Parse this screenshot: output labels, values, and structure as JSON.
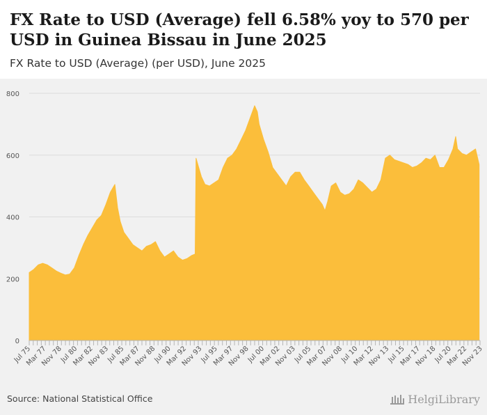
{
  "title": "FX Rate to USD (Average) fell 6.58% yoy to 570 per USD in Guinea Bissau in June 2025",
  "subtitle": "FX Rate to USD (Average) (per USD), June 2025",
  "source": "Source: National Statistical Office",
  "brand": "HelgiLibrary",
  "colors": {
    "fill": "#FBBE3B",
    "grid": "#dcdcdc",
    "axis": "#b5b5b5",
    "panel": "#f1f1f1"
  },
  "chart_data": {
    "type": "area",
    "title": "FX Rate to USD (Average) (per USD), June 2025",
    "xlabel": "",
    "ylabel": "",
    "ylim": [
      0,
      800
    ],
    "yticks": [
      0,
      200,
      400,
      600,
      800
    ],
    "xlim": [
      1975.5,
      2025.5
    ],
    "xtick_labels": [
      "Jul 75",
      "Mar 77",
      "Nov 78",
      "Jul 80",
      "Mar 82",
      "Nov 83",
      "Jul 85",
      "Mar 87",
      "Nov 88",
      "Jul 90",
      "Mar 92",
      "Nov 93",
      "Jul 95",
      "Mar 97",
      "Nov 98",
      "Jul 00",
      "Mar 02",
      "Nov 03",
      "Jul 05",
      "Mar 07",
      "Nov 08",
      "Jul 10",
      "Mar 12",
      "Nov 13",
      "Jul 15",
      "Mar 17",
      "Nov 18",
      "Jul 20",
      "Mar 22",
      "Nov 23"
    ],
    "grid": true,
    "series": [
      {
        "name": "FX Rate to USD (Average)",
        "x": [
          1975.5,
          1976.0,
          1976.5,
          1977.0,
          1977.5,
          1978.0,
          1978.5,
          1979.0,
          1979.5,
          1980.0,
          1980.5,
          1981.0,
          1981.5,
          1982.0,
          1982.5,
          1983.0,
          1983.5,
          1984.0,
          1984.5,
          1985.0,
          1985.3,
          1985.6,
          1986.0,
          1986.5,
          1987.0,
          1987.5,
          1988.0,
          1988.5,
          1989.0,
          1989.5,
          1990.0,
          1990.5,
          1991.0,
          1991.5,
          1992.0,
          1992.5,
          1993.0,
          1993.5,
          1993.9,
          1994.0,
          1994.3,
          1994.6,
          1995.0,
          1995.5,
          1996.0,
          1996.5,
          1997.0,
          1997.5,
          1998.0,
          1998.5,
          1999.0,
          1999.5,
          2000.0,
          2000.5,
          2000.8,
          2001.0,
          2001.5,
          2002.0,
          2002.5,
          2003.0,
          2003.5,
          2004.0,
          2004.5,
          2005.0,
          2005.5,
          2006.0,
          2006.5,
          2007.0,
          2007.5,
          2008.0,
          2008.3,
          2008.6,
          2009.0,
          2009.5,
          2010.0,
          2010.5,
          2011.0,
          2011.5,
          2012.0,
          2012.5,
          2013.0,
          2013.5,
          2014.0,
          2014.5,
          2015.0,
          2015.5,
          2016.0,
          2016.5,
          2017.0,
          2017.5,
          2018.0,
          2018.5,
          2019.0,
          2019.5,
          2020.0,
          2020.5,
          2021.0,
          2021.5,
          2022.0,
          2022.5,
          2022.8,
          2023.0,
          2023.5,
          2024.0,
          2024.5,
          2025.0,
          2025.4
        ],
        "values": [
          220,
          230,
          245,
          250,
          245,
          235,
          225,
          218,
          212,
          215,
          235,
          275,
          310,
          340,
          365,
          390,
          405,
          440,
          480,
          505,
          430,
          385,
          350,
          330,
          310,
          300,
          290,
          305,
          310,
          320,
          290,
          270,
          280,
          290,
          270,
          260,
          265,
          275,
          280,
          590,
          560,
          530,
          505,
          500,
          510,
          520,
          560,
          590,
          600,
          620,
          650,
          680,
          720,
          760,
          740,
          700,
          650,
          610,
          560,
          540,
          520,
          500,
          530,
          545,
          545,
          520,
          500,
          480,
          460,
          440,
          420,
          450,
          500,
          510,
          480,
          470,
          475,
          490,
          520,
          510,
          495,
          480,
          490,
          520,
          590,
          600,
          585,
          580,
          575,
          570,
          560,
          565,
          575,
          590,
          585,
          600,
          560,
          560,
          585,
          620,
          660,
          620,
          605,
          600,
          610,
          620,
          570
        ]
      }
    ]
  }
}
